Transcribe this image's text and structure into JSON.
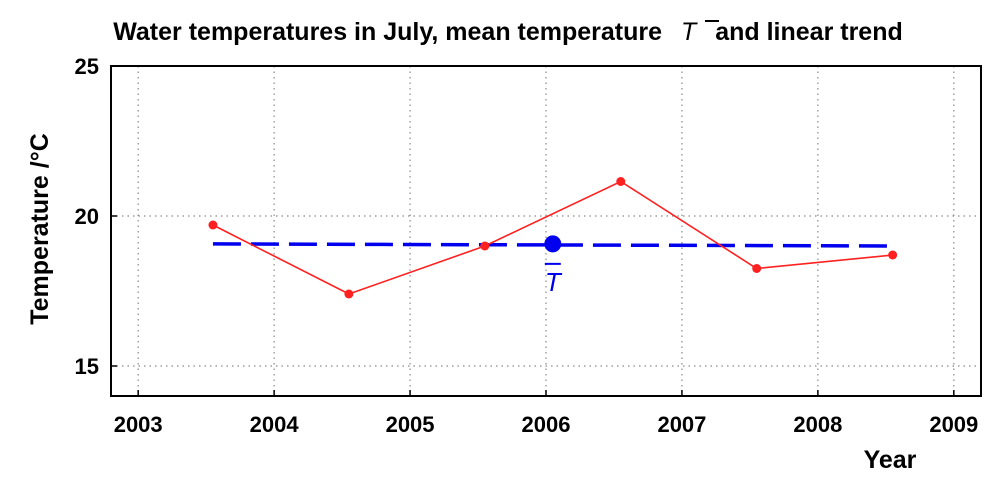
{
  "chart_data": {
    "type": "line",
    "title_prefix": "Water temperatures in July, mean temperature",
    "title_symbol": "T",
    "title_suffix": "and linear trend",
    "xlabel": "Year",
    "ylabel": "Temperature /°C",
    "xlim": [
      2002.8,
      2009.2
    ],
    "ylim": [
      14,
      25
    ],
    "xticks": [
      2003,
      2004,
      2005,
      2006,
      2007,
      2008,
      2009
    ],
    "xtick_labels": [
      "2003",
      "2004",
      "2005",
      "2006",
      "2007",
      "2008",
      "2009"
    ],
    "yticks": [
      15,
      20,
      25
    ],
    "ytick_labels": [
      "15",
      "20",
      "25"
    ],
    "grid": true,
    "series": [
      {
        "color": "#ff2020",
        "x": [
          2003.55,
          2004.55,
          2005.55,
          2006.55,
          2007.55,
          2008.55
        ],
        "y": [
          19.7,
          17.4,
          19.0,
          21.15,
          18.25,
          18.7
        ]
      }
    ],
    "trend": {
      "color": "#0000ee",
      "style": "dashed",
      "x": [
        2003.55,
        2008.55
      ],
      "y": [
        19.07,
        19.0
      ]
    },
    "mean": {
      "color": "#0000ee",
      "x": 2006.05,
      "y": 19.07,
      "label": "T"
    }
  }
}
